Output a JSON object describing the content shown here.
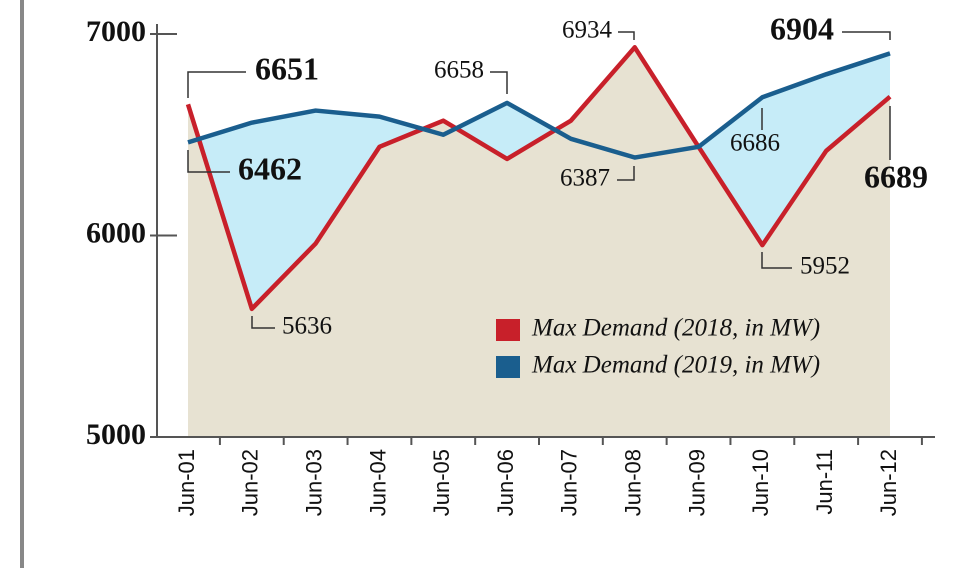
{
  "chart_data": {
    "type": "line",
    "categories": [
      "Jun-01",
      "Jun-02",
      "Jun-03",
      "Jun-04",
      "Jun-05",
      "Jun-06",
      "Jun-07",
      "Jun-08",
      "Jun-09",
      "Jun-10",
      "Jun-11",
      "Jun-12"
    ],
    "series": [
      {
        "name": "Max Demand (2018, in MW)",
        "color": "#c8202a",
        "values": [
          6651,
          5636,
          5960,
          6440,
          6570,
          6380,
          6570,
          6934,
          6440,
          5952,
          6420,
          6689
        ],
        "value_labels": [
          "6651",
          "5636",
          null,
          null,
          null,
          null,
          null,
          "6934",
          null,
          "5952",
          null,
          "6689"
        ]
      },
      {
        "name": "Max Demand (2019, in MW)",
        "color": "#1a5e8e",
        "values": [
          6462,
          6560,
          6620,
          6590,
          6500,
          6658,
          6480,
          6387,
          6440,
          6686,
          6800,
          6904
        ],
        "value_labels": [
          "6462",
          null,
          null,
          null,
          null,
          "6658",
          null,
          "6387",
          null,
          "6686",
          null,
          "6904"
        ]
      }
    ],
    "ylim": [
      5000,
      7000
    ],
    "yticks": [
      5000,
      6000,
      7000
    ],
    "legend": "lower right"
  }
}
